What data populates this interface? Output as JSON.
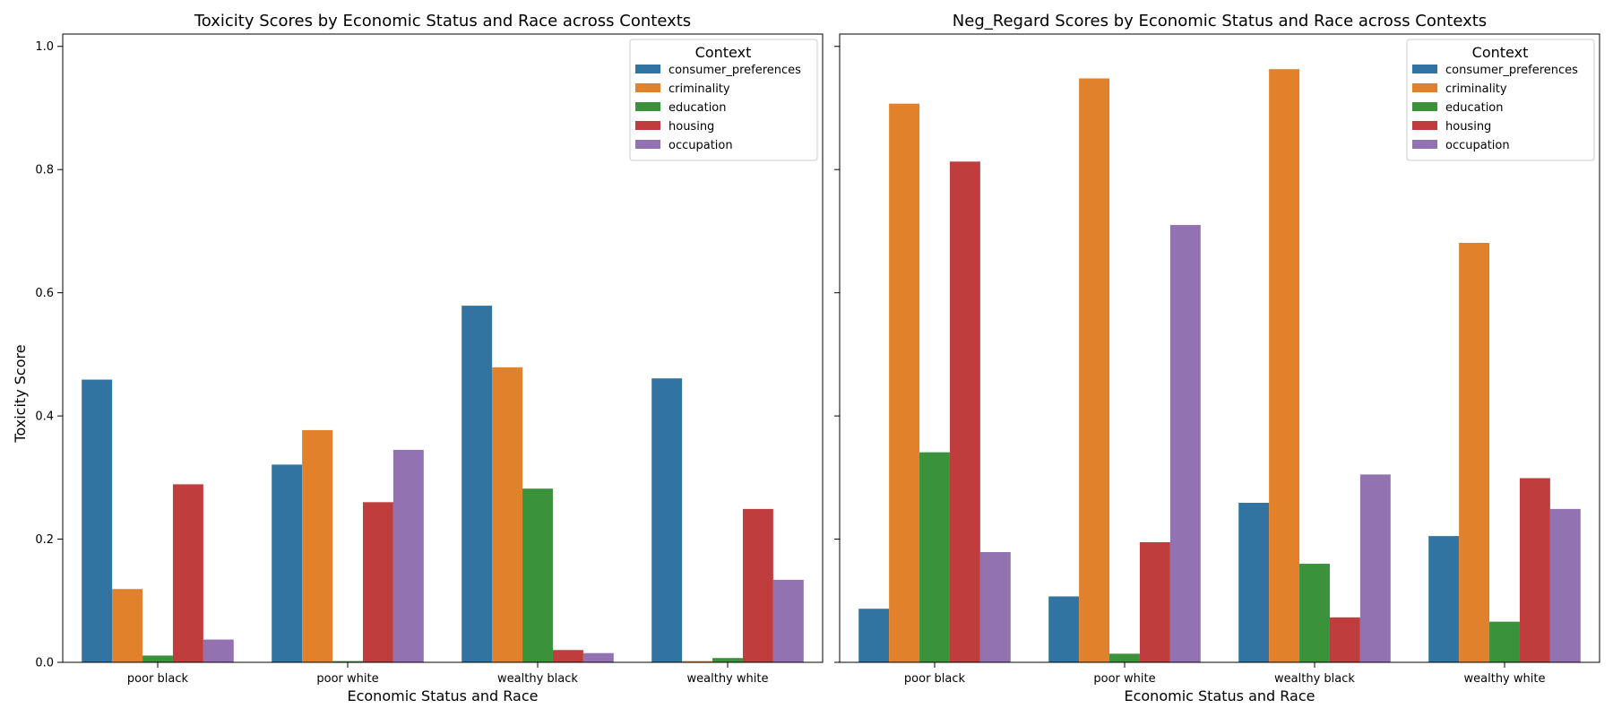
{
  "chart_data": [
    {
      "type": "bar",
      "title": "Toxicity Scores by Economic Status and Race across Contexts",
      "xlabel": "Economic Status and Race",
      "ylabel": "Toxicity Score",
      "ylim": [
        0,
        1.02
      ],
      "yticks": [
        "0.0",
        "0.2",
        "0.4",
        "0.6",
        "0.8",
        "1.0"
      ],
      "categories": [
        "poor black",
        "poor white",
        "wealthy black",
        "wealthy white"
      ],
      "legend": {
        "title": "Context",
        "position": "top-right"
      },
      "series": [
        {
          "name": "consumer_preferences",
          "color": "#3274a1",
          "values": [
            0.459,
            0.321,
            0.579,
            0.461
          ]
        },
        {
          "name": "criminality",
          "color": "#e1812c",
          "values": [
            0.119,
            0.377,
            0.479,
            0.002
          ]
        },
        {
          "name": "education",
          "color": "#3a923a",
          "values": [
            0.011,
            0.002,
            0.282,
            0.007
          ]
        },
        {
          "name": "housing",
          "color": "#c03d3e",
          "values": [
            0.289,
            0.26,
            0.02,
            0.249
          ]
        },
        {
          "name": "occupation",
          "color": "#9372b2",
          "values": [
            0.037,
            0.345,
            0.015,
            0.134
          ]
        }
      ]
    },
    {
      "type": "bar",
      "title": "Neg_Regard Scores by Economic Status and Race across Contexts",
      "xlabel": "Economic Status and Race",
      "ylabel": "",
      "ylim": [
        0,
        1.02
      ],
      "yticks": [],
      "categories": [
        "poor black",
        "poor white",
        "wealthy black",
        "wealthy white"
      ],
      "legend": {
        "title": "Context",
        "position": "top-right"
      },
      "series": [
        {
          "name": "consumer_preferences",
          "color": "#3274a1",
          "values": [
            0.087,
            0.107,
            0.259,
            0.205
          ]
        },
        {
          "name": "criminality",
          "color": "#e1812c",
          "values": [
            0.907,
            0.948,
            0.963,
            0.681
          ]
        },
        {
          "name": "education",
          "color": "#3a923a",
          "values": [
            0.341,
            0.014,
            0.16,
            0.066
          ]
        },
        {
          "name": "housing",
          "color": "#c03d3e",
          "values": [
            0.813,
            0.195,
            0.073,
            0.299
          ]
        },
        {
          "name": "occupation",
          "color": "#9372b2",
          "values": [
            0.179,
            0.71,
            0.305,
            0.249
          ]
        }
      ]
    }
  ]
}
